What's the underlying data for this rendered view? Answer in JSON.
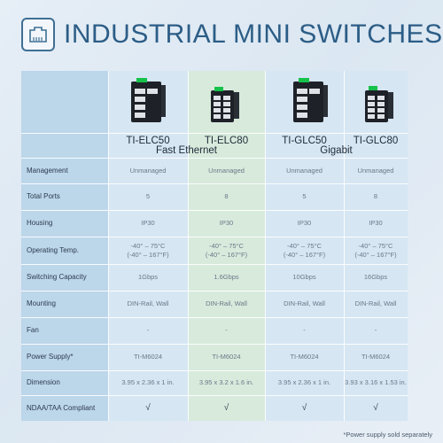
{
  "title": "INDUSTRIAL MINI SWITCHES",
  "logo_icon": "ethernet-port-icon",
  "models": [
    "TI-ELC50",
    "TI-ELC80",
    "TI-GLC50",
    "TI-GLC80"
  ],
  "groups": [
    "Fast Ethernet",
    "Gigabit"
  ],
  "rows": [
    {
      "label": "Management",
      "values": [
        "Unmanaged",
        "Unmanaged",
        "Unmanaged",
        "Unmanaged"
      ]
    },
    {
      "label": "Total Ports",
      "values": [
        "5",
        "8",
        "5",
        "8"
      ]
    },
    {
      "label": "Housing",
      "values": [
        "IP30",
        "IP30",
        "IP30",
        "IP30"
      ]
    },
    {
      "label": "Operating Temp.",
      "values": [
        "-40° – 75°C\n(-40° – 167°F)",
        "-40° – 75°C\n(-40° – 167°F)",
        "-40° – 75°C\n(-40° – 167°F)",
        "-40° – 75°C\n(-40° – 167°F)"
      ]
    },
    {
      "label": "Switching Capacity",
      "values": [
        "1Gbps",
        "1.6Gbps",
        "10Gbps",
        "16Gbps"
      ]
    },
    {
      "label": "Mounting",
      "values": [
        "DIN-Rail, Wall",
        "DIN-Rail, Wall",
        "DIN-Rail, Wall",
        "DIN-Rail, Wall"
      ]
    },
    {
      "label": "Fan",
      "values": [
        "-",
        "-",
        "-",
        "-"
      ]
    },
    {
      "label": "Power Supply*",
      "values": [
        "TI-M6024",
        "TI-M6024",
        "TI-M6024",
        "TI-M6024"
      ]
    },
    {
      "label": "Dimension",
      "values": [
        "3.95 x 2.36 x 1 in.",
        "3.95 x 3.2 x 1.6 in.",
        "3.95 x 2.36 x 1 in.",
        "3.93 x 3.16 x 1.53 in."
      ]
    },
    {
      "label": "NDAA/TAA Compliant",
      "values": [
        "√",
        "√",
        "√",
        "√"
      ]
    }
  ],
  "footnote": "*Power supply sold separately",
  "colors": {
    "title": "#2c5d86",
    "fast_ethernet_col": "#d7eadc",
    "label_col": "#bcd6ea"
  }
}
